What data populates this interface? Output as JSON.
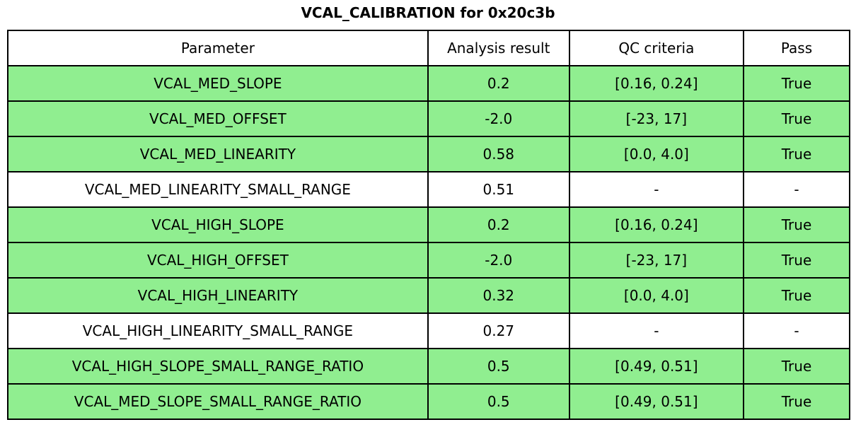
{
  "title": "VCAL_CALIBRATION for 0x20c3b",
  "chart_data": {
    "type": "table",
    "title": "VCAL_CALIBRATION for 0x20c3b",
    "columns": [
      "Parameter",
      "Analysis result",
      "QC criteria",
      "Pass"
    ],
    "rows": [
      {
        "cells": [
          "VCAL_MED_SLOPE",
          "0.2",
          "[0.16, 0.24]",
          "True"
        ],
        "highlighted": true
      },
      {
        "cells": [
          "VCAL_MED_OFFSET",
          "-2.0",
          "[-23, 17]",
          "True"
        ],
        "highlighted": true
      },
      {
        "cells": [
          "VCAL_MED_LINEARITY",
          "0.58",
          "[0.0, 4.0]",
          "True"
        ],
        "highlighted": true
      },
      {
        "cells": [
          "VCAL_MED_LINEARITY_SMALL_RANGE",
          "0.51",
          "-",
          "-"
        ],
        "highlighted": false
      },
      {
        "cells": [
          "VCAL_HIGH_SLOPE",
          "0.2",
          "[0.16, 0.24]",
          "True"
        ],
        "highlighted": true
      },
      {
        "cells": [
          "VCAL_HIGH_OFFSET",
          "-2.0",
          "[-23, 17]",
          "True"
        ],
        "highlighted": true
      },
      {
        "cells": [
          "VCAL_HIGH_LINEARITY",
          "0.32",
          "[0.0, 4.0]",
          "True"
        ],
        "highlighted": true
      },
      {
        "cells": [
          "VCAL_HIGH_LINEARITY_SMALL_RANGE",
          "0.27",
          "-",
          "-"
        ],
        "highlighted": false
      },
      {
        "cells": [
          "VCAL_HIGH_SLOPE_SMALL_RANGE_RATIO",
          "0.5",
          "[0.49, 0.51]",
          "True"
        ],
        "highlighted": true
      },
      {
        "cells": [
          "VCAL_MED_SLOPE_SMALL_RANGE_RATIO",
          "0.5",
          "[0.49, 0.51]",
          "True"
        ],
        "highlighted": true
      }
    ],
    "layout": {
      "col_widths_pct": [
        49.9,
        16.8,
        20.7,
        12.6
      ],
      "legend": "none",
      "grid": "table-borders"
    },
    "colors": {
      "pass_row_bg": "#90ee90",
      "default_row_bg": "#ffffff",
      "header_bg": "#ffffff",
      "border": "#000000",
      "text": "#000000"
    }
  }
}
